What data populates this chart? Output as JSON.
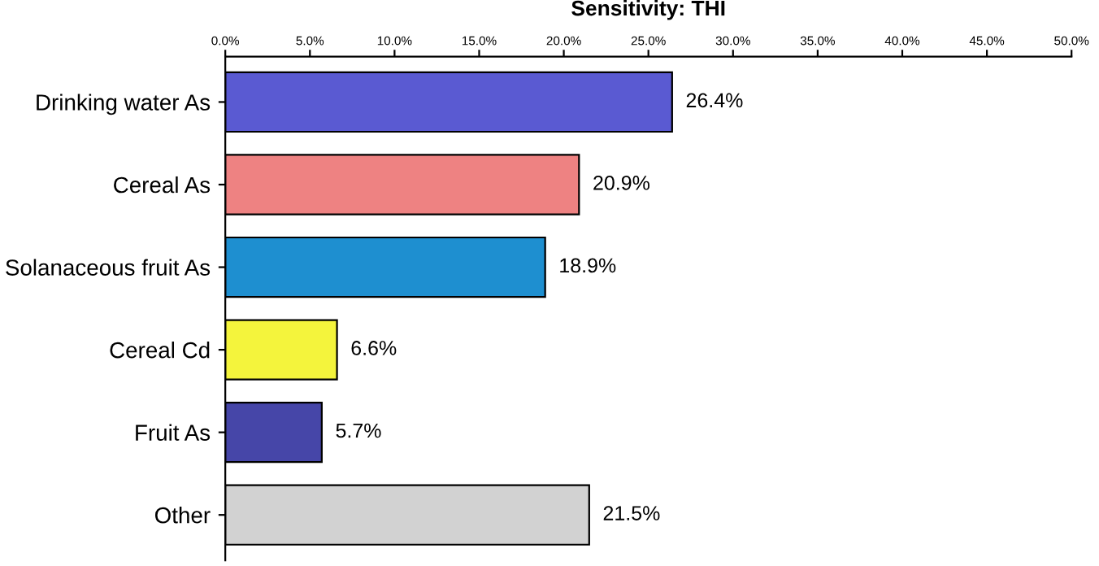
{
  "chart_data": {
    "type": "bar",
    "orientation": "horizontal",
    "title": "Sensitivity: THI",
    "categories": [
      "Drinking water As",
      "Cereal As",
      "Solanaceous fruit As",
      "Cereal Cd",
      "Fruit As",
      "Other"
    ],
    "values": [
      26.4,
      20.9,
      18.9,
      6.6,
      5.7,
      21.5
    ],
    "colors": [
      "#5a5ad2",
      "#ee8282",
      "#1e8fd0",
      "#f4f43c",
      "#4646a8",
      "#d2d2d2"
    ],
    "value_labels": [
      "26.4%",
      "20.9%",
      "18.9%",
      "6.6%",
      "5.7%",
      "21.5%"
    ],
    "xlim": [
      0,
      50
    ],
    "xticks": [
      {
        "value": 0,
        "label": "0.0%"
      },
      {
        "value": 5,
        "label": "5.0%"
      },
      {
        "value": 10,
        "label": "10.0%"
      },
      {
        "value": 15,
        "label": "15.0%"
      },
      {
        "value": 20,
        "label": "20.0%"
      },
      {
        "value": 25,
        "label": "25.0%"
      },
      {
        "value": 30,
        "label": "30.0%"
      },
      {
        "value": 35,
        "label": "35.0%"
      },
      {
        "value": 40,
        "label": "40.0%"
      },
      {
        "value": 45,
        "label": "45.0%"
      },
      {
        "value": 50,
        "label": "50.0%"
      }
    ],
    "grid": false,
    "legend": false
  }
}
